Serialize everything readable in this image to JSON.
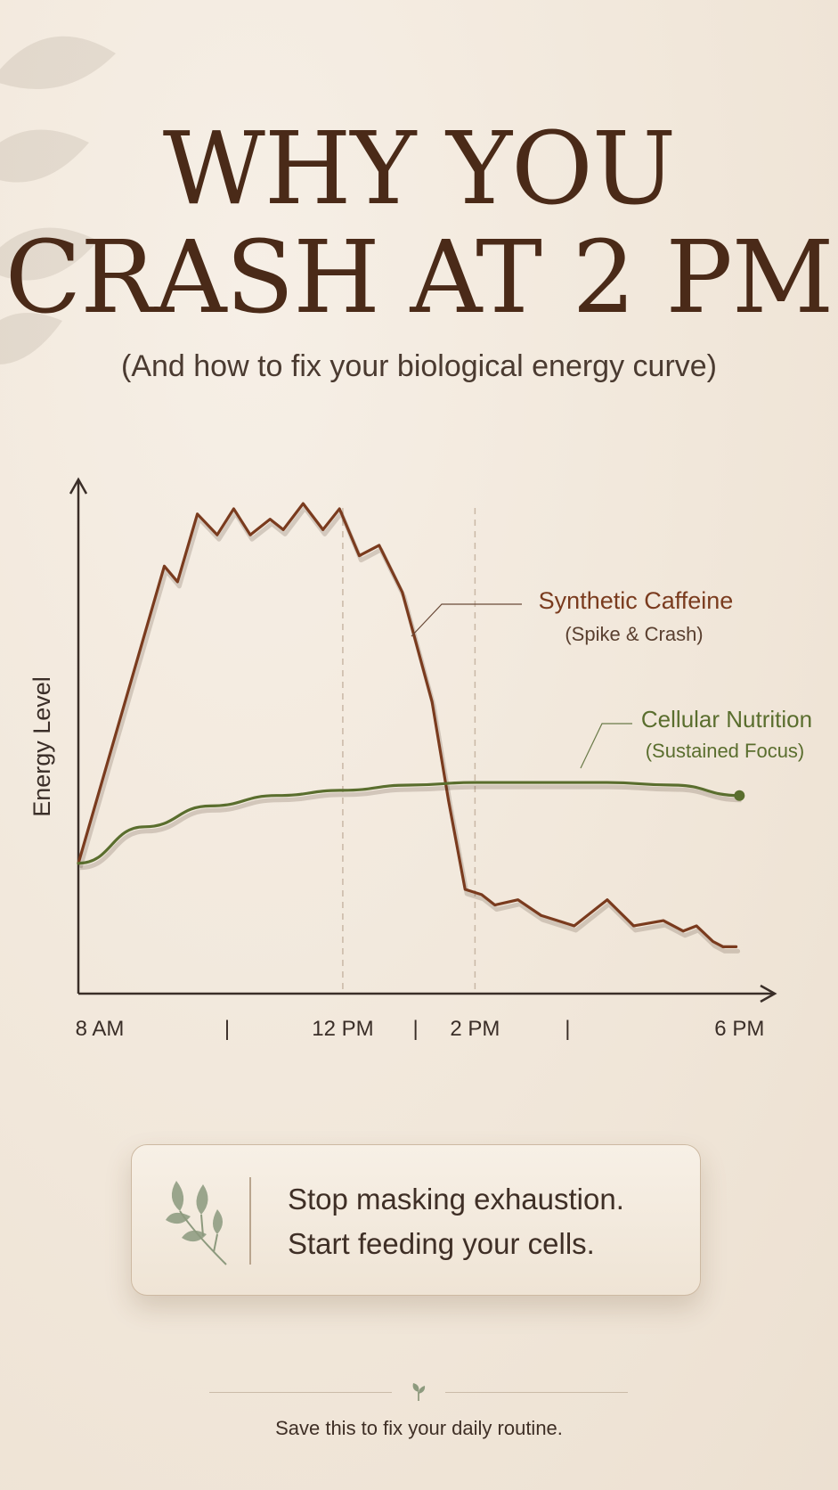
{
  "title_line1": "WHY YOU",
  "title_line2": "CRASH AT 2 PM",
  "subtitle": "(And how to fix your biological energy curve)",
  "chart_data": {
    "type": "line",
    "ylabel": "Energy Level",
    "x_ticks": [
      {
        "value": 8,
        "label": "8 AM"
      },
      {
        "value": 10.25,
        "label": "|"
      },
      {
        "value": 12,
        "label": "12 PM"
      },
      {
        "value": 13.1,
        "label": "|"
      },
      {
        "value": 14,
        "label": "2 PM"
      },
      {
        "value": 15.4,
        "label": "|"
      },
      {
        "value": 18,
        "label": "6 PM"
      }
    ],
    "vlines": [
      12,
      14
    ],
    "xlim": [
      8,
      18.4
    ],
    "ylim": [
      0,
      100
    ],
    "series": [
      {
        "name": "Synthetic Caffeine",
        "note": "(Spike & Crash)",
        "color": "#7a3b1e",
        "x": [
          8,
          9.3,
          9.5,
          9.8,
          10.1,
          10.35,
          10.6,
          10.9,
          11.1,
          11.4,
          11.7,
          11.95,
          12.25,
          12.55,
          12.9,
          13.35,
          13.6,
          13.85,
          14.1,
          14.3,
          14.65,
          15.0,
          15.5,
          16.0,
          16.4,
          16.85,
          17.15,
          17.35,
          17.6,
          17.75,
          17.95,
          17.75
        ],
        "y": [
          25,
          82,
          79,
          92,
          88,
          93,
          88,
          91,
          89,
          94,
          89,
          93,
          84,
          86,
          77,
          56,
          37,
          20,
          19,
          17,
          18,
          15,
          13,
          18,
          13,
          14,
          12,
          13,
          10,
          9,
          9,
          9
        ]
      },
      {
        "name": "Cellular Nutrition",
        "note": "(Sustained Focus)",
        "color": "#5a6e2e",
        "x": [
          8,
          9,
          10,
          11,
          12,
          13,
          14,
          15,
          16,
          17,
          18
        ],
        "y": [
          25,
          32,
          36,
          38,
          39,
          40,
          40.5,
          40.5,
          40.5,
          40,
          38
        ]
      }
    ]
  },
  "cta": {
    "line1": "Stop masking exhaustion.",
    "line2": "Start feeding your cells.",
    "icon": "leaf-sprig-icon"
  },
  "footer": {
    "text": "Save this to fix your daily routine.",
    "icon": "small-leaf-icon"
  },
  "colors": {
    "background": "#f1e7da",
    "title": "#4a2a18",
    "caffeine": "#7a3b1e",
    "nutrition": "#5a6e2e",
    "axis": "#3a2e28"
  }
}
